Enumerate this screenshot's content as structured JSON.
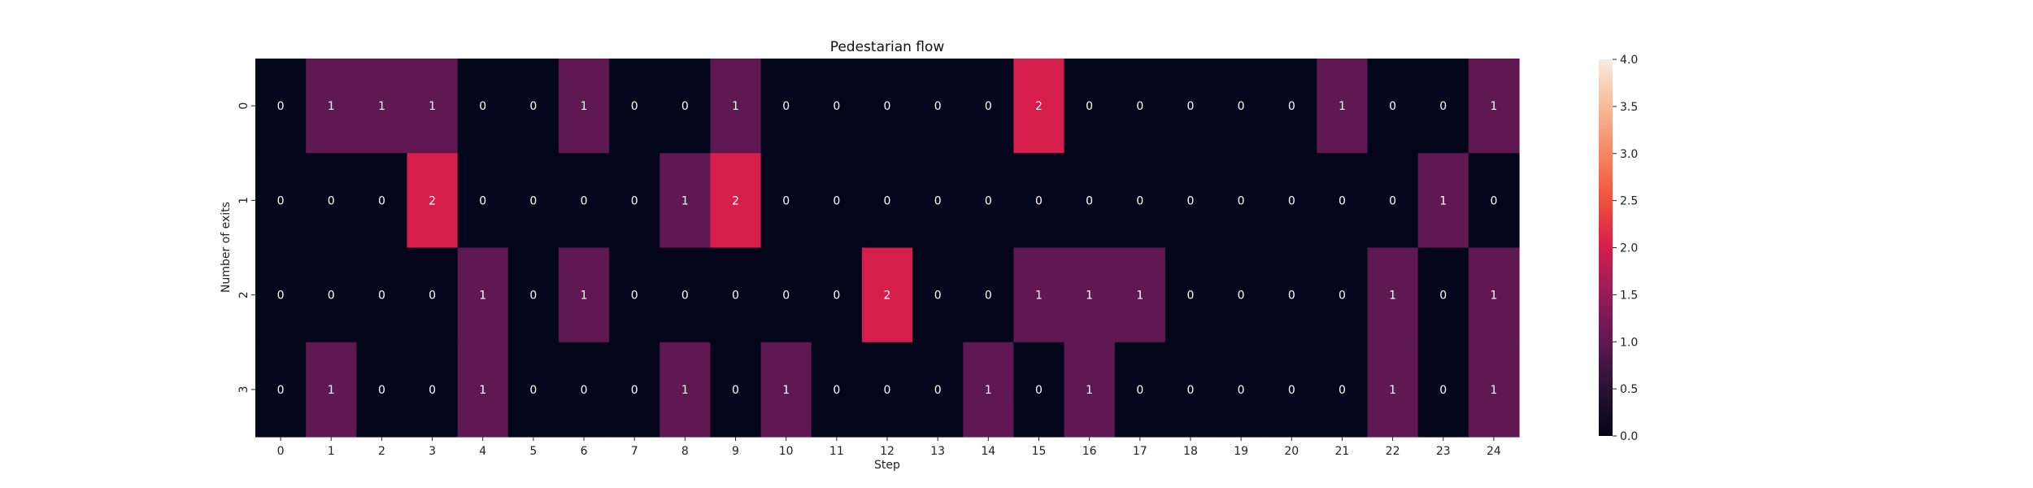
{
  "chart_data": {
    "type": "heatmap",
    "title": "Pedestarian flow",
    "xlabel": "Step",
    "ylabel": "Number of exits",
    "x_categories": [
      "0",
      "1",
      "2",
      "3",
      "4",
      "5",
      "6",
      "7",
      "8",
      "9",
      "10",
      "11",
      "12",
      "13",
      "14",
      "15",
      "16",
      "17",
      "18",
      "19",
      "20",
      "21",
      "22",
      "23",
      "24"
    ],
    "y_categories": [
      "0",
      "1",
      "2",
      "3"
    ],
    "values": [
      [
        0,
        1,
        1,
        1,
        0,
        0,
        1,
        0,
        0,
        1,
        0,
        0,
        0,
        0,
        0,
        2,
        0,
        0,
        0,
        0,
        0,
        1,
        0,
        0,
        1
      ],
      [
        0,
        0,
        0,
        2,
        0,
        0,
        0,
        0,
        1,
        2,
        0,
        0,
        0,
        0,
        0,
        0,
        0,
        0,
        0,
        0,
        0,
        0,
        0,
        1,
        0
      ],
      [
        0,
        0,
        0,
        0,
        1,
        0,
        1,
        0,
        0,
        0,
        0,
        0,
        2,
        0,
        0,
        1,
        1,
        1,
        0,
        0,
        0,
        0,
        1,
        0,
        1
      ],
      [
        0,
        1,
        0,
        0,
        1,
        0,
        0,
        0,
        1,
        0,
        1,
        0,
        0,
        0,
        1,
        0,
        1,
        0,
        0,
        0,
        0,
        0,
        1,
        0,
        1
      ]
    ],
    "colorbar": {
      "min": 0.0,
      "max": 4.0,
      "ticks": [
        "0.0",
        "0.5",
        "1.0",
        "1.5",
        "2.0",
        "2.5",
        "3.0",
        "3.5",
        "4.0"
      ]
    },
    "annotated": true,
    "grid": false,
    "colormap": "rocket"
  }
}
